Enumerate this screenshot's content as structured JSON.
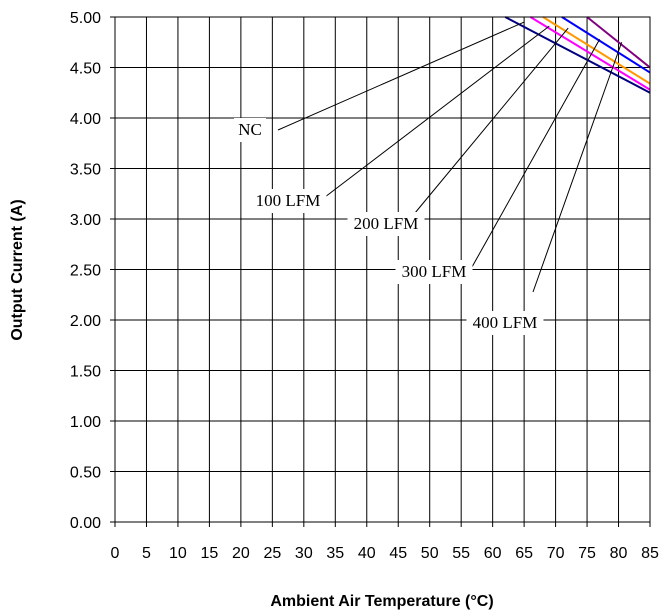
{
  "chart_data": {
    "type": "line",
    "title": "",
    "xlabel": "Ambient Air Temperature (°C)",
    "ylabel": "Output Current (A)",
    "xlim": [
      0,
      85
    ],
    "ylim": [
      0,
      5
    ],
    "xticks": [
      "0",
      "5",
      "10",
      "15",
      "20",
      "25",
      "30",
      "35",
      "40",
      "45",
      "50",
      "55",
      "60",
      "65",
      "70",
      "75",
      "80",
      "85"
    ],
    "yticks": [
      "0.00",
      "0.50",
      "1.00",
      "1.50",
      "2.00",
      "2.50",
      "3.00",
      "3.50",
      "4.00",
      "4.50",
      "5.00"
    ],
    "grid": true,
    "series": [
      {
        "name": "NC",
        "color": "#000080",
        "x": [
          62,
          85
        ],
        "y": [
          5.0,
          4.25
        ]
      },
      {
        "name": "100 LFM",
        "color": "#ff00ff",
        "x": [
          66,
          85
        ],
        "y": [
          5.0,
          4.28
        ]
      },
      {
        "name": "200 LFM",
        "color": "#ff9900",
        "x": [
          68,
          85
        ],
        "y": [
          5.0,
          4.34
        ]
      },
      {
        "name": "300 LFM",
        "color": "#0000ff",
        "x": [
          71,
          85
        ],
        "y": [
          5.0,
          4.45
        ]
      },
      {
        "name": "400 LFM",
        "color": "#800080",
        "x": [
          75,
          85
        ],
        "y": [
          5.0,
          4.5
        ]
      }
    ],
    "annotations": [
      {
        "text": "NC",
        "series": 0
      },
      {
        "text": "100 LFM",
        "series": 1
      },
      {
        "text": "200 LFM",
        "series": 2
      },
      {
        "text": "300 LFM",
        "series": 3
      },
      {
        "text": "400 LFM",
        "series": 4
      }
    ]
  }
}
